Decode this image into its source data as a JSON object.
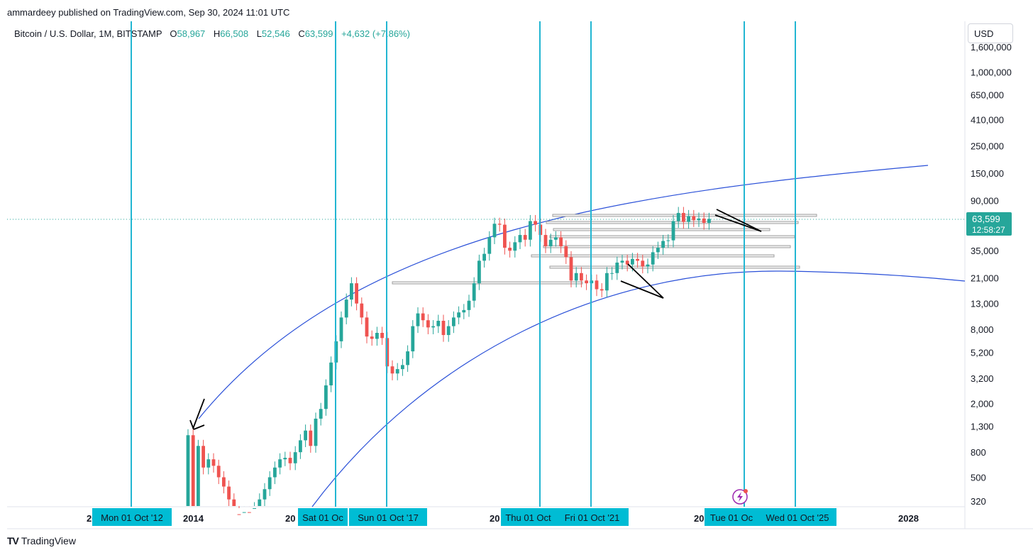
{
  "publisher_line": "ammardeey published on TradingView.com, Sep 30, 2024 11:01 UTC",
  "legend": {
    "symbol": "Bitcoin / U.S. Dollar, 1M, BITSTAMP",
    "open_label": "O",
    "open": "58,967",
    "high_label": "H",
    "high": "66,508",
    "low_label": "L",
    "low": "52,546",
    "close_label": "C",
    "close": "63,599",
    "change": "+4,632 (+7.86%)"
  },
  "currency_button": "USD",
  "footer_brand": "TradingView",
  "colors": {
    "up": "#26a69a",
    "down": "#ef5350",
    "vline": "#22b6d2",
    "curve": "#2a50d8",
    "label_bg": "#00bcd4",
    "price_tag": "#26a69a"
  },
  "chart_data": {
    "type": "candlestick",
    "scale": "log",
    "y_ticks": [
      "1,600,000",
      "1,000,000",
      "650,000",
      "410,000",
      "250,000",
      "150,000",
      "90,000",
      "35,000",
      "21,000",
      "13,000",
      "8,000",
      "5,200",
      "3,200",
      "2,000",
      "1,300",
      "800",
      "500",
      "320"
    ],
    "x_ticks": [
      "20",
      "2014",
      "20",
      "20",
      "20",
      "2028"
    ],
    "date_labels": [
      "Mon 01 Oct '12",
      "Sat 01 Oc",
      "Sun 01 Oct '17",
      "Thu 01 Oct",
      "Fri 01 Oct '21",
      "Tue 01 Oc",
      "Wed 01 Oct '25"
    ],
    "last_price": "63,599",
    "countdown": "12:58:27",
    "series": [
      {
        "values": [
          1100,
          130,
          900,
          600,
          700,
          620,
          500,
          420,
          330,
          250,
          230,
          260,
          240,
          280,
          330,
          400,
          500,
          600,
          700,
          720,
          650,
          800,
          1000,
          1200,
          900,
          1500,
          1800,
          2800,
          4300,
          6400,
          10000,
          14000,
          19000,
          13000,
          10000,
          7000,
          6700,
          7500,
          6800,
          4000,
          3500,
          3800,
          4100,
          5300,
          8500,
          10800,
          9500,
          8300,
          8500,
          9400,
          7200,
          8500,
          10000,
          11000,
          11500,
          13700,
          19000,
          29000,
          33000,
          45000,
          58000,
          57000,
          37000,
          35000,
          41000,
          47000,
          43000,
          61000,
          57000,
          47000,
          38000,
          43000,
          45000,
          38000,
          31000,
          20000,
          23000,
          20000,
          19000,
          20000,
          17000,
          16600,
          23000,
          23000,
          28000,
          29000,
          27000,
          30000,
          29000,
          26000,
          27000,
          34000,
          37000,
          42000,
          42500,
          61000,
          71000,
          60000,
          67000,
          62000,
          64000,
          59000,
          63599
        ]
      }
    ]
  }
}
